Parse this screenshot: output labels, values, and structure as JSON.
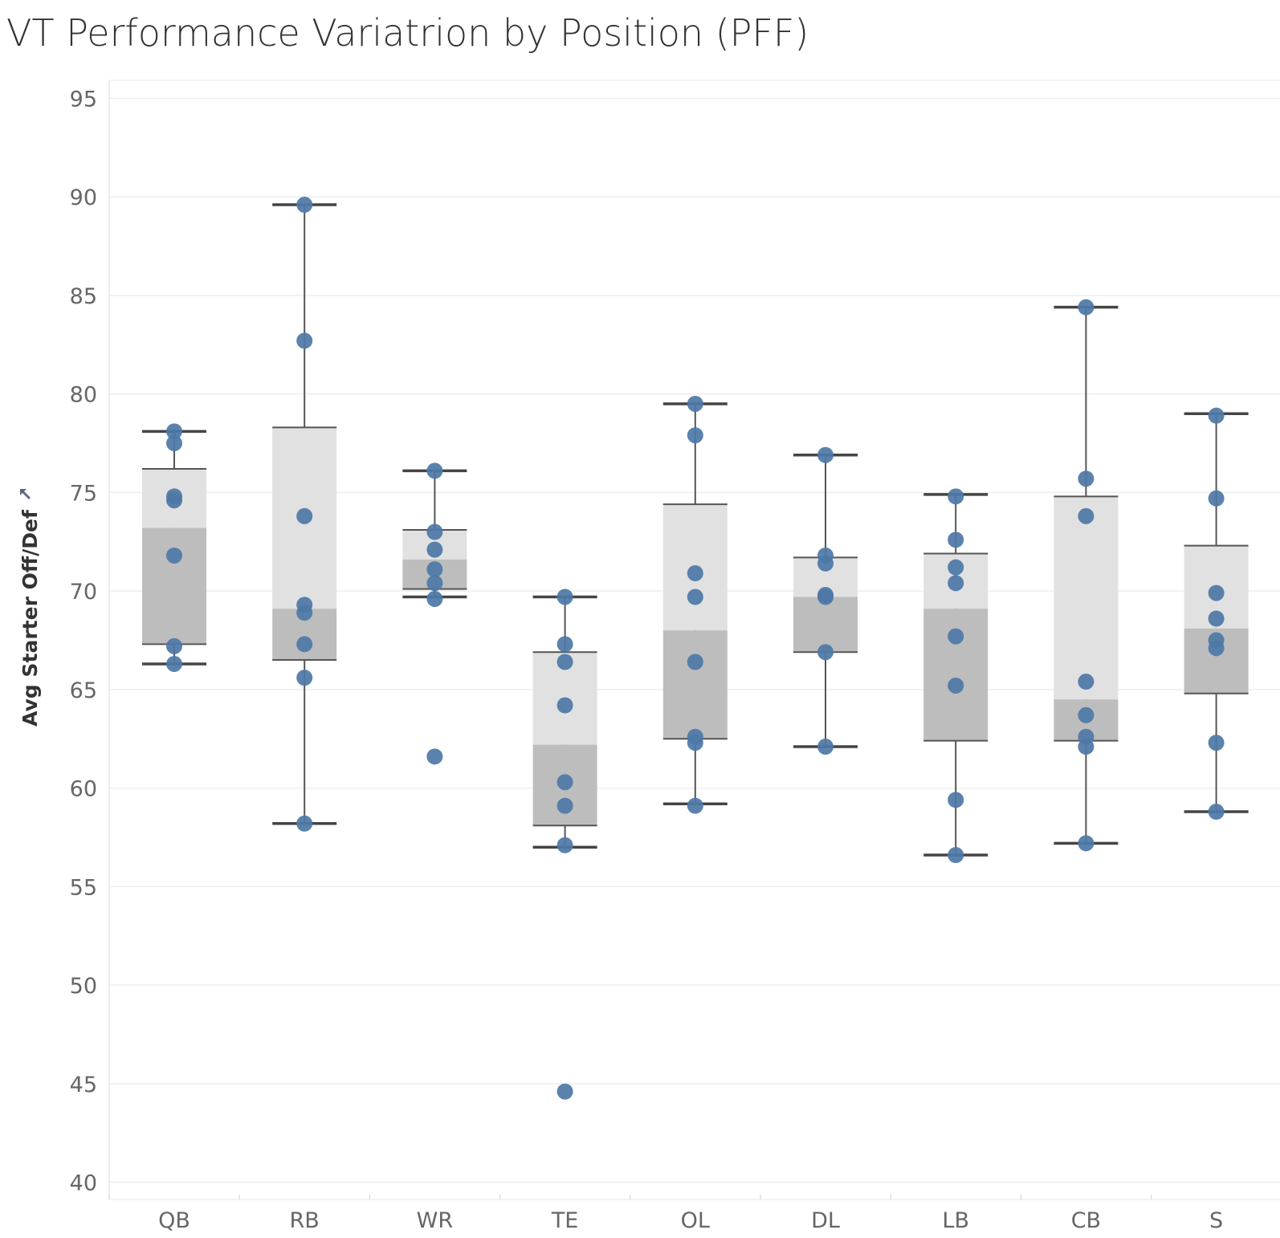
{
  "chart_data": {
    "type": "box",
    "title": "VT Performance Variatrion by Position (PFF)",
    "xlabel": "",
    "ylabel": "Avg Starter Off/Def",
    "ylim": [
      40,
      95
    ],
    "yticks": [
      40,
      45,
      50,
      55,
      60,
      65,
      70,
      75,
      80,
      85,
      90,
      95
    ],
    "grid": true,
    "colors": {
      "point": "#4e79a7",
      "box_upper": "#e1e1e1",
      "box_lower": "#bdbdbd",
      "whisker": "#555555",
      "gridline": "#eeeeee"
    },
    "categories": [
      "QB",
      "RB",
      "WR",
      "TE",
      "OL",
      "DL",
      "LB",
      "CB",
      "S"
    ],
    "boxes": [
      {
        "category": "QB",
        "whisker_low": 66.3,
        "q1": 67.3,
        "median": 73.2,
        "q3": 76.2,
        "whisker_high": 78.1
      },
      {
        "category": "RB",
        "whisker_low": 58.2,
        "q1": 66.5,
        "median": 69.1,
        "q3": 78.3,
        "whisker_high": 89.6
      },
      {
        "category": "WR",
        "whisker_low": 69.7,
        "q1": 70.1,
        "median": 71.6,
        "q3": 73.1,
        "whisker_high": 76.1
      },
      {
        "category": "TE",
        "whisker_low": 57.0,
        "q1": 58.1,
        "median": 62.2,
        "q3": 66.9,
        "whisker_high": 69.7
      },
      {
        "category": "OL",
        "whisker_low": 59.2,
        "q1": 62.5,
        "median": 68.0,
        "q3": 74.4,
        "whisker_high": 79.5
      },
      {
        "category": "DL",
        "whisker_low": 62.1,
        "q1": 66.9,
        "median": 69.7,
        "q3": 71.7,
        "whisker_high": 76.9
      },
      {
        "category": "LB",
        "whisker_low": 56.6,
        "q1": 62.4,
        "median": 69.1,
        "q3": 71.9,
        "whisker_high": 74.9
      },
      {
        "category": "CB",
        "whisker_low": 57.2,
        "q1": 62.4,
        "median": 64.5,
        "q3": 74.8,
        "whisker_high": 84.4
      },
      {
        "category": "S",
        "whisker_low": 58.8,
        "q1": 64.8,
        "median": 68.1,
        "q3": 72.3,
        "whisker_high": 79.0
      }
    ],
    "points": [
      {
        "category": "QB",
        "values": [
          78.1,
          77.5,
          74.8,
          74.6,
          71.8,
          67.2,
          66.3
        ]
      },
      {
        "category": "RB",
        "values": [
          89.6,
          82.7,
          73.8,
          69.3,
          68.9,
          67.3,
          65.6,
          58.2
        ]
      },
      {
        "category": "WR",
        "values": [
          76.1,
          73.0,
          72.1,
          71.1,
          70.4,
          69.6,
          61.6
        ]
      },
      {
        "category": "TE",
        "values": [
          69.7,
          67.3,
          66.4,
          64.2,
          60.3,
          59.1,
          57.1,
          44.6
        ]
      },
      {
        "category": "OL",
        "values": [
          79.5,
          77.9,
          70.9,
          69.7,
          66.4,
          62.6,
          62.3,
          59.1
        ]
      },
      {
        "category": "DL",
        "values": [
          76.9,
          71.8,
          71.4,
          69.8,
          69.7,
          66.9,
          62.1
        ]
      },
      {
        "category": "LB",
        "values": [
          74.8,
          72.6,
          71.2,
          70.4,
          67.7,
          65.2,
          59.4,
          56.6
        ]
      },
      {
        "category": "CB",
        "values": [
          84.4,
          75.7,
          73.8,
          65.4,
          63.7,
          62.6,
          62.1,
          57.2
        ]
      },
      {
        "category": "S",
        "values": [
          78.9,
          74.7,
          69.9,
          68.6,
          67.5,
          67.1,
          62.3,
          58.8
        ]
      }
    ]
  }
}
